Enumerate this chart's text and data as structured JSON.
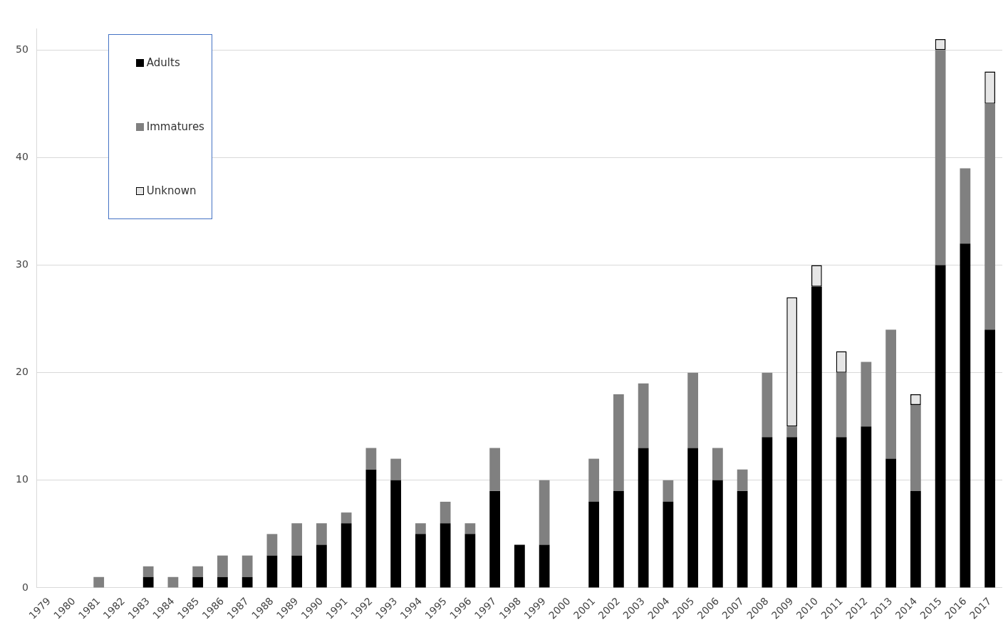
{
  "chart_data": {
    "type": "bar",
    "stacked": true,
    "categories": [
      "1979",
      "1980",
      "1981",
      "1982",
      "1983",
      "1984",
      "1985",
      "1986",
      "1987",
      "1988",
      "1989",
      "1990",
      "1991",
      "1992",
      "1993",
      "1994",
      "1995",
      "1996",
      "1997",
      "1998",
      "1999",
      "2000",
      "2001",
      "2002",
      "2003",
      "2004",
      "2005",
      "2006",
      "2007",
      "2008",
      "2009",
      "2010",
      "2011",
      "2012",
      "2013",
      "2014",
      "2015",
      "2016",
      "2017"
    ],
    "series": [
      {
        "name": "Adults",
        "color": "#000000",
        "values": [
          0,
          0,
          0,
          0,
          1,
          0,
          1,
          1,
          1,
          3,
          3,
          4,
          6,
          11,
          10,
          5,
          6,
          5,
          9,
          4,
          4,
          0,
          8,
          9,
          13,
          8,
          13,
          10,
          9,
          14,
          14,
          28,
          14,
          15,
          12,
          9,
          30,
          32,
          24
        ]
      },
      {
        "name": "Immatures",
        "color": "#808080",
        "values": [
          0,
          0,
          1,
          0,
          1,
          1,
          1,
          2,
          2,
          2,
          3,
          2,
          1,
          2,
          2,
          1,
          2,
          1,
          4,
          0,
          6,
          0,
          4,
          9,
          6,
          2,
          7,
          3,
          2,
          6,
          1,
          0,
          6,
          6,
          12,
          8,
          20,
          7,
          21
        ]
      },
      {
        "name": "Unknown",
        "color": "#e6e6e6",
        "values": [
          0,
          0,
          0,
          0,
          0,
          0,
          0,
          0,
          0,
          0,
          0,
          0,
          0,
          0,
          0,
          0,
          0,
          0,
          0,
          0,
          0,
          0,
          0,
          0,
          0,
          0,
          0,
          0,
          0,
          0,
          12,
          2,
          2,
          0,
          0,
          1,
          1,
          0,
          3
        ]
      }
    ],
    "ylim": [
      0,
      52
    ],
    "yticks": [
      0,
      10,
      20,
      30,
      40,
      50
    ],
    "grid": "y",
    "legend": "top left"
  }
}
